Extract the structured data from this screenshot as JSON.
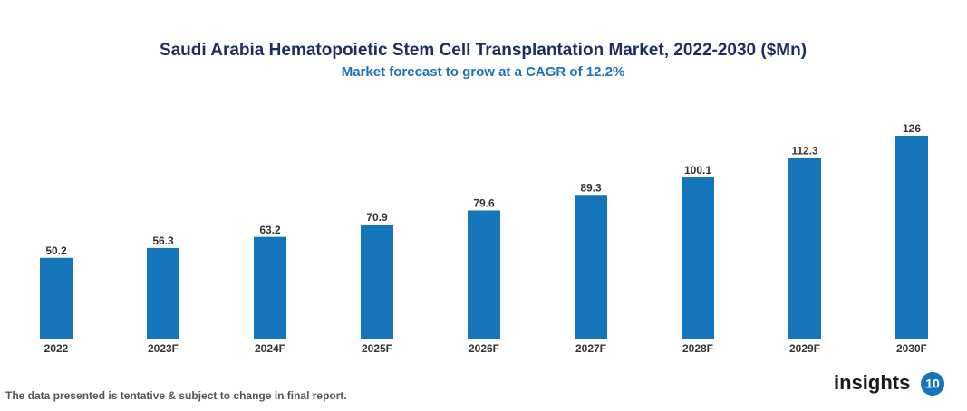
{
  "chart_data": {
    "type": "bar",
    "title": "Saudi Arabia Hematopoietic Stem Cell Transplantation Market, 2022-2030 ($Mn)",
    "subtitle": "Market forecast to grow at a CAGR of 12.2%",
    "categories": [
      "2022",
      "2023F",
      "2024F",
      "2025F",
      "2026F",
      "2027F",
      "2028F",
      "2029F",
      "2030F"
    ],
    "values": [
      50.2,
      56.3,
      63.2,
      70.9,
      79.6,
      89.3,
      100.1,
      112.3,
      126
    ],
    "color": "#1475bb"
  },
  "footnote": "The data presented is tentative & subject to change in final report.",
  "logo": {
    "text": "insights",
    "badge": "10"
  }
}
